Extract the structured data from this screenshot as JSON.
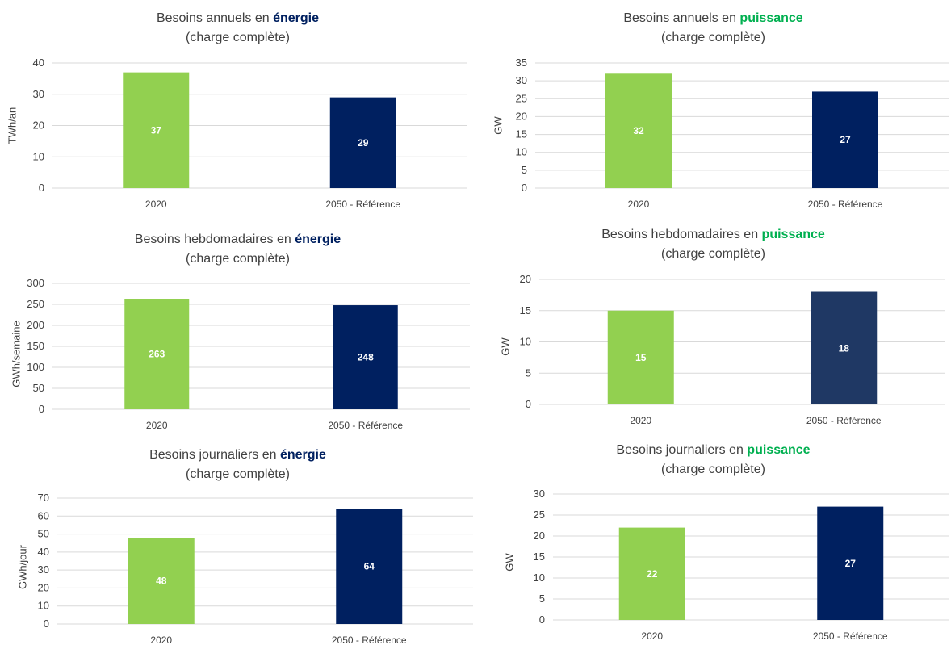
{
  "colors": {
    "green": "#92d050",
    "navy": "#002060",
    "navy_light": "#1f3864",
    "title_blue": "#002060",
    "title_green": "#00b050",
    "grid": "#d9d9d9",
    "text": "#404040"
  },
  "chart_data": [
    {
      "type": "bar",
      "title_main": "Besoins annuels en ",
      "title_em": "énergie",
      "title_em_color": "#002060",
      "subtitle": "(charge complète)",
      "categories": [
        "2020",
        "2050 - Référence"
      ],
      "values": [
        37,
        29
      ],
      "bar_colors": [
        "#92d050",
        "#002060"
      ],
      "ylabel": "TWh/an",
      "ylim": [
        0,
        40
      ],
      "yticks": [
        0,
        10,
        20,
        30,
        40
      ],
      "xlabel": "",
      "grid": true
    },
    {
      "type": "bar",
      "title_main": "Besoins annuels en ",
      "title_em": "puissance",
      "title_em_color": "#00b050",
      "subtitle": "(charge complète)",
      "categories": [
        "2020",
        "2050 - Référence"
      ],
      "values": [
        32,
        27
      ],
      "bar_colors": [
        "#92d050",
        "#002060"
      ],
      "ylabel": "GW",
      "ylim": [
        0,
        35
      ],
      "yticks": [
        0,
        5,
        10,
        15,
        20,
        25,
        30,
        35
      ],
      "xlabel": "",
      "grid": true
    },
    {
      "type": "bar",
      "title_main": "Besoins hebdomadaires en ",
      "title_em": "énergie",
      "title_em_color": "#002060",
      "subtitle": "(charge complète)",
      "categories": [
        "2020",
        "2050 - Référence"
      ],
      "values": [
        263,
        248
      ],
      "bar_colors": [
        "#92d050",
        "#002060"
      ],
      "ylabel": "GWh/semaine",
      "ylim": [
        0,
        300
      ],
      "yticks": [
        0,
        50,
        100,
        150,
        200,
        250,
        300
      ],
      "xlabel": "",
      "grid": true
    },
    {
      "type": "bar",
      "title_main": "Besoins hebdomadaires en ",
      "title_em": "puissance",
      "title_em_color": "#00b050",
      "subtitle": "(charge complète)",
      "categories": [
        "2020",
        "2050 - Référence"
      ],
      "values": [
        15,
        18
      ],
      "bar_colors": [
        "#92d050",
        "#1f3864"
      ],
      "ylabel": "GW",
      "ylim": [
        0,
        20
      ],
      "yticks": [
        0,
        5,
        10,
        15,
        20
      ],
      "xlabel": "",
      "grid": true
    },
    {
      "type": "bar",
      "title_main": "Besoins journaliers en ",
      "title_em": "énergie",
      "title_em_color": "#002060",
      "subtitle": "(charge complète)",
      "categories": [
        "2020",
        "2050 - Référence"
      ],
      "values": [
        48,
        64
      ],
      "bar_colors": [
        "#92d050",
        "#002060"
      ],
      "ylabel": "GWh/jour",
      "ylim": [
        0,
        70
      ],
      "yticks": [
        0,
        10,
        20,
        30,
        40,
        50,
        60,
        70
      ],
      "xlabel": "",
      "grid": true
    },
    {
      "type": "bar",
      "title_main": "Besoins journaliers en ",
      "title_em": "puissance",
      "title_em_color": "#00b050",
      "subtitle": "(charge complète)",
      "categories": [
        "2020",
        "2050 - Référence"
      ],
      "values": [
        22,
        27
      ],
      "bar_colors": [
        "#92d050",
        "#002060"
      ],
      "ylabel": "GW",
      "ylim": [
        0,
        30
      ],
      "yticks": [
        0,
        5,
        10,
        15,
        20,
        25,
        30
      ],
      "xlabel": "",
      "grid": true
    }
  ]
}
